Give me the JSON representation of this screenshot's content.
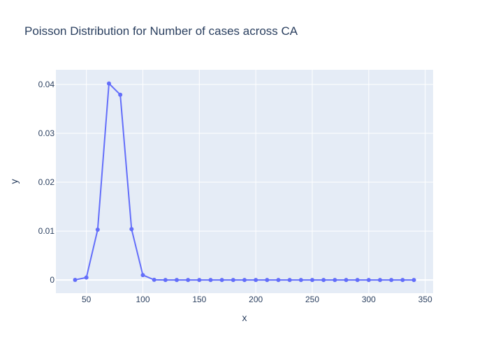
{
  "chart_data": {
    "type": "line",
    "title": "Poisson Distribution for Number of cases across CA",
    "xlabel": "x",
    "ylabel": "y",
    "xlim": [
      23,
      357
    ],
    "ylim": [
      -0.0027,
      0.043
    ],
    "grid": true,
    "x_ticks": [
      50,
      100,
      150,
      200,
      250,
      300,
      350
    ],
    "y_ticks": [
      0,
      0.01,
      0.02,
      0.03,
      0.04
    ],
    "y_tick_labels": [
      "0",
      "0.01",
      "0.02",
      "0.03",
      "0.04"
    ],
    "series": [
      {
        "x": [
          40,
          50,
          60,
          70,
          80,
          90,
          100,
          110,
          120,
          130,
          140,
          150,
          160,
          170,
          180,
          190,
          200,
          210,
          220,
          230,
          240,
          250,
          260,
          270,
          280,
          290,
          300,
          310,
          320,
          330,
          340
        ],
        "values": [
          2e-05,
          0.0005,
          0.0103,
          0.0402,
          0.0379,
          0.0104,
          0.001,
          3e-05,
          0,
          0,
          0,
          0,
          0,
          0,
          0,
          0,
          0,
          0,
          0,
          0,
          0,
          0,
          0,
          0,
          0,
          0,
          0,
          0,
          0,
          0,
          0
        ]
      }
    ],
    "colors": {
      "plot_bg": "#e5ecf6",
      "grid": "#ffffff",
      "line": "#636efa",
      "text": "#2a3f5f"
    }
  }
}
